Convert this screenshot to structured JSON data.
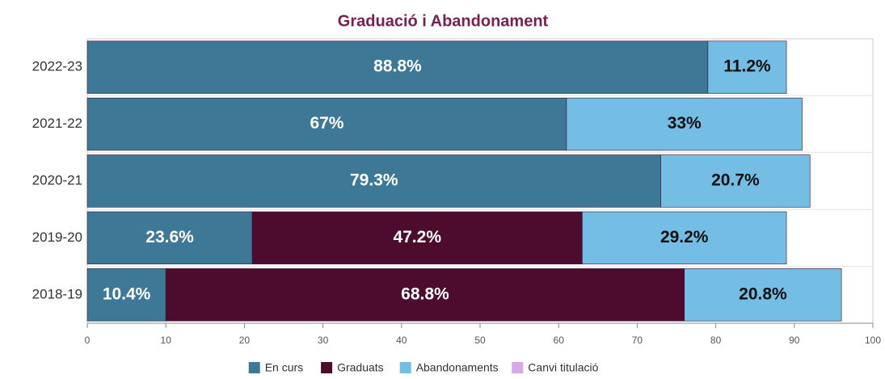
{
  "chart_data": {
    "type": "stacked-barh",
    "title": "Graduació i Abandonament",
    "categories": [
      "2022-23",
      "2021-22",
      "2020-21",
      "2019-20",
      "2018-19"
    ],
    "series": [
      {
        "name": "En curs",
        "color": "#3d7896",
        "values": [
          79,
          61,
          73,
          21,
          10
        ],
        "value_labels": [
          "88.8%",
          "67%",
          "79.3%",
          "23.6%",
          "10.4%"
        ]
      },
      {
        "name": "Graduats",
        "color": "#4d0c2e",
        "values": [
          0,
          0,
          0,
          42,
          66
        ],
        "value_labels": [
          null,
          null,
          null,
          "47.2%",
          "68.8%"
        ]
      },
      {
        "name": "Abandonaments",
        "color": "#74bde4",
        "values": [
          10,
          30,
          19,
          26,
          20
        ],
        "value_labels": [
          "11.2%",
          "33%",
          "20.7%",
          "29.2%",
          "20.8%"
        ]
      },
      {
        "name": "Canvi titulació",
        "color": "#d9a8e8",
        "values": [
          0,
          0,
          0,
          0,
          0
        ],
        "value_labels": [
          null,
          null,
          null,
          null,
          null
        ]
      }
    ],
    "xlim": [
      0,
      100
    ],
    "xticks": [
      0,
      10,
      20,
      30,
      40,
      50,
      60,
      70,
      80,
      90,
      100
    ],
    "grid": true
  }
}
